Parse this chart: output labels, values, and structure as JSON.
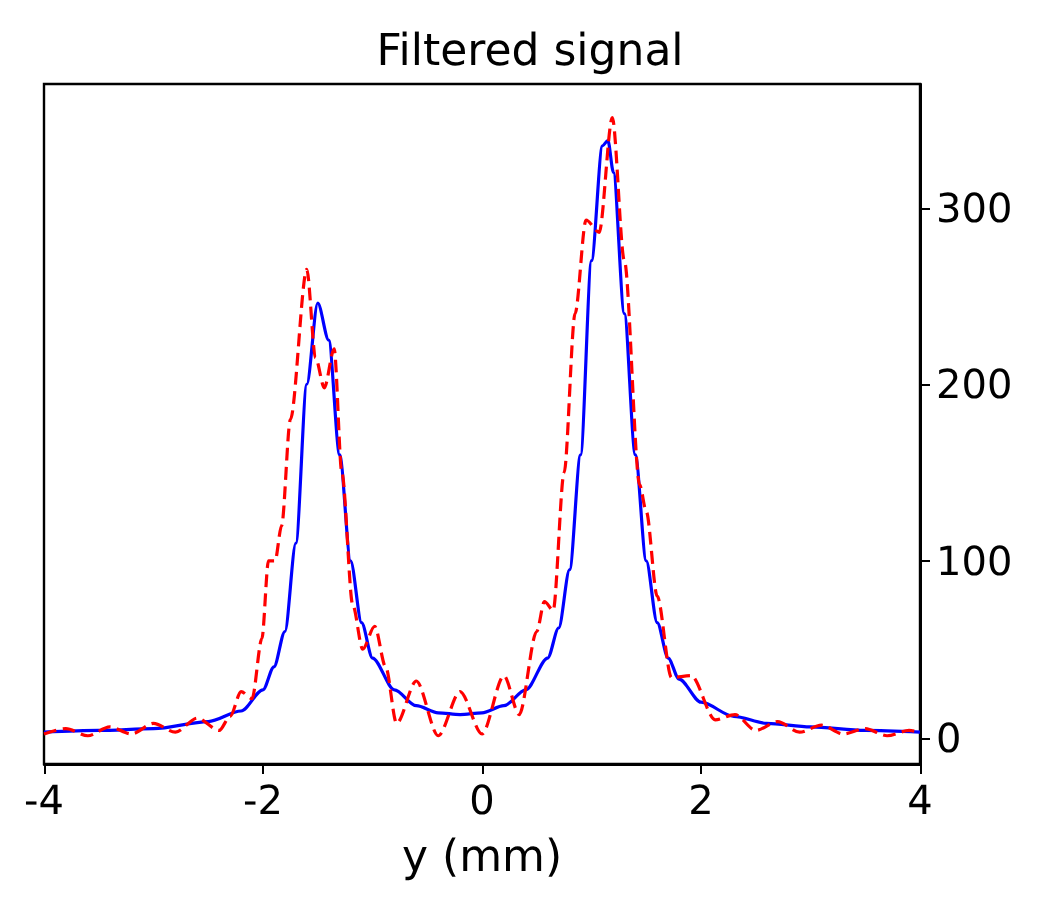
{
  "chart_data": {
    "type": "line",
    "title": "Filtered signal",
    "xlabel": "y (mm)",
    "xlim": [
      -4,
      4
    ],
    "xticks": [
      -4,
      -2,
      0,
      2,
      4
    ],
    "ylim": [
      -15,
      370
    ],
    "yticks": [
      0,
      100,
      200,
      300
    ],
    "grid": false,
    "marker": "none",
    "series": [
      {
        "color": "#0000ff",
        "line_style": "solid",
        "x": [
          -4,
          -3.5,
          -3,
          -2.5,
          -2.2,
          -2,
          -1.9,
          -1.8,
          -1.7,
          -1.6,
          -1.5,
          -1.4,
          -1.3,
          -1.2,
          -1.1,
          -1,
          -0.8,
          -0.6,
          -0.4,
          -0.2,
          0,
          0.2,
          0.4,
          0.6,
          0.7,
          0.8,
          0.9,
          1,
          1.1,
          1.15,
          1.2,
          1.3,
          1.4,
          1.5,
          1.6,
          1.7,
          1.8,
          2,
          2.3,
          2.6,
          3,
          3.5,
          4
        ],
        "values": [
          3,
          4,
          5,
          9,
          15,
          27,
          40,
          60,
          110,
          200,
          246,
          225,
          160,
          100,
          65,
          45,
          27,
          18,
          14,
          13,
          14,
          18,
          27,
          45,
          62,
          95,
          160,
          270,
          335,
          338,
          320,
          240,
          160,
          100,
          65,
          45,
          33,
          20,
          12,
          8,
          6,
          4,
          3
        ]
      },
      {
        "color": "#ff0000",
        "line_style": "dashed",
        "x": [
          -4,
          -3.8,
          -3.6,
          -3.4,
          -3.2,
          -3,
          -2.8,
          -2.6,
          -2.4,
          -2.3,
          -2.2,
          -2.1,
          -2.01,
          -1.95,
          -1.89,
          -1.83,
          -1.75,
          -1.6,
          -1.52,
          -1.44,
          -1.35,
          -1.28,
          -1.18,
          -1.09,
          -0.98,
          -0.88,
          -0.78,
          -0.6,
          -0.4,
          -0.2,
          0,
          0.2,
          0.34,
          0.5,
          0.57,
          0.65,
          0.75,
          0.85,
          0.95,
          1.07,
          1.19,
          1.3,
          1.44,
          1.5,
          1.6,
          1.73,
          1.91,
          2.13,
          2.31,
          2.5,
          2.7,
          2.9,
          3.1,
          3.3,
          3.5,
          3.7,
          3.9,
          4
        ],
        "values": [
          2,
          5,
          1,
          6,
          2,
          8,
          3,
          11,
          4,
          12,
          26,
          22,
          56,
          100,
          100,
          120,
          180,
          265,
          215,
          198,
          220,
          150,
          75,
          50,
          63,
          40,
          8,
          32,
          1,
          26,
          2,
          35,
          13,
          60,
          77,
          72,
          150,
          240,
          293,
          286,
          351,
          270,
          143,
          128,
          80,
          34,
          35,
          10,
          13,
          4,
          9,
          3,
          7,
          2,
          5,
          1,
          4,
          3
        ]
      }
    ]
  }
}
